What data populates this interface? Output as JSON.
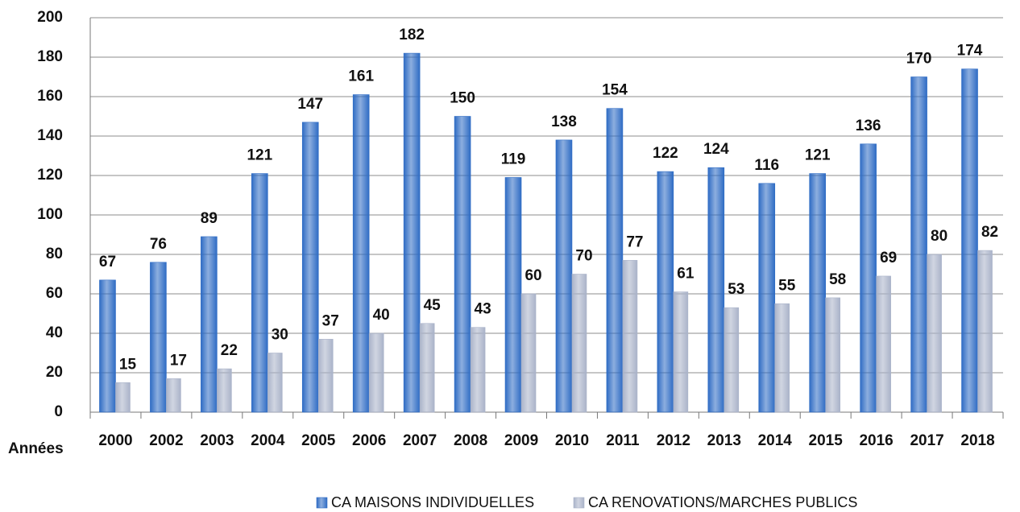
{
  "chart_data": {
    "type": "bar",
    "x_label": "Années",
    "categories": [
      "2000",
      "2002",
      "2003",
      "2004",
      "2005",
      "2006",
      "2007",
      "2008",
      "2009",
      "2010",
      "2011",
      "2012",
      "2013",
      "2014",
      "2015",
      "2016",
      "2017",
      "2018"
    ],
    "series": [
      {
        "name": "CA MAISONS INDIVIDUELLES",
        "color": "#2f6cc4",
        "values": [
          67,
          76,
          89,
          121,
          147,
          161,
          182,
          150,
          119,
          138,
          154,
          122,
          124,
          116,
          121,
          136,
          170,
          174
        ]
      },
      {
        "name": "CA RENOVATIONS/MARCHES PUBLICS",
        "color": "#aab3c9",
        "values": [
          15,
          17,
          22,
          30,
          37,
          40,
          45,
          43,
          60,
          70,
          77,
          61,
          53,
          55,
          58,
          69,
          80,
          82
        ]
      }
    ],
    "ylim": [
      0,
      200
    ],
    "yticks": [
      0,
      20,
      40,
      60,
      80,
      100,
      120,
      140,
      160,
      180,
      200
    ],
    "grid": true
  }
}
